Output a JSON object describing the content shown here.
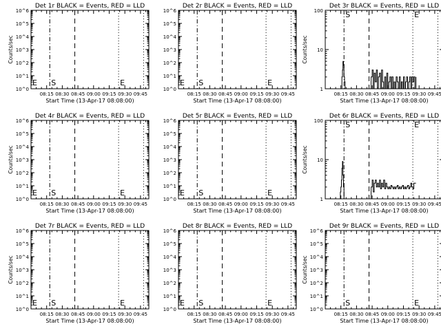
{
  "chart_data": [
    {
      "type": "line",
      "title": "Det 1r BLACK = Events, RED = LLD",
      "xlabel": "Start Time (13-Apr-17 08:08:00)",
      "ylabel": "Counts/sec",
      "yscale": "log",
      "ylim": [
        1,
        1000000
      ],
      "y_tick_labels": [
        "10^0",
        "10^1",
        "10^2",
        "10^3",
        "10^4",
        "10^5",
        "10^6"
      ],
      "x_tick_labels": [
        "08:15",
        "08:30",
        "08:45",
        "09:00",
        "09:15",
        "09:30",
        "09:45"
      ],
      "x_ticks_min": [
        15,
        30,
        45,
        60,
        75,
        90,
        105
      ],
      "xlim_min": [
        0,
        113
      ],
      "markers": [
        {
          "label": "E",
          "at_min": 0,
          "style": "dotted"
        },
        {
          "label": "S",
          "at_min": 18,
          "style": "dashdot"
        },
        {
          "label": "",
          "at_min": 42,
          "style": "dashed"
        },
        {
          "label": "E",
          "at_min": 84,
          "style": "dotted"
        },
        {
          "label": "",
          "at_min": 108,
          "style": "dotted"
        }
      ],
      "series": []
    },
    {
      "type": "line",
      "title": "Det 2r BLACK = Events, RED = LLD",
      "xlabel": "Start Time (13-Apr-17 08:08:00)",
      "ylabel": "",
      "yscale": "log",
      "ylim": [
        1,
        1000000
      ],
      "y_tick_labels": [
        "10^0",
        "10^1",
        "10^2",
        "10^3",
        "10^4",
        "10^5",
        "10^6"
      ],
      "x_tick_labels": [
        "08:15",
        "08:30",
        "08:45",
        "09:00",
        "09:15",
        "09:30",
        "09:45"
      ],
      "x_ticks_min": [
        15,
        30,
        45,
        60,
        75,
        90,
        105
      ],
      "xlim_min": [
        0,
        113
      ],
      "markers": [
        {
          "label": "E",
          "at_min": 0,
          "style": "dotted"
        },
        {
          "label": "S",
          "at_min": 18,
          "style": "dashdot"
        },
        {
          "label": "",
          "at_min": 42,
          "style": "dashed"
        },
        {
          "label": "E",
          "at_min": 84,
          "style": "dotted"
        },
        {
          "label": "",
          "at_min": 108,
          "style": "dotted"
        }
      ],
      "series": []
    },
    {
      "type": "line",
      "title": "Det 3r BLACK = Events, RED = LLD",
      "xlabel": "Start Time (13-Apr-17 08:08:00)",
      "ylabel": "Counts/sec",
      "yscale": "log",
      "ylim": [
        1,
        100
      ],
      "y_tick_labels": [
        "1",
        "10",
        "100"
      ],
      "x_tick_labels": [
        "08:15",
        "08:30",
        "08:45",
        "09:00",
        "09:15",
        "09:30",
        "09:45"
      ],
      "x_ticks_min": [
        15,
        30,
        45,
        60,
        75,
        90,
        105
      ],
      "xlim_min": [
        0,
        113
      ],
      "markers": [
        {
          "label": "",
          "at_min": 0,
          "style": "dotted"
        },
        {
          "label": "S",
          "at_min": 18,
          "style": "dashdot"
        },
        {
          "label": "",
          "at_min": 42,
          "style": "dashed"
        },
        {
          "label": "E",
          "at_min": 84,
          "style": "dotted"
        },
        {
          "label": "",
          "at_min": 108,
          "style": "dotted"
        }
      ],
      "series": [
        {
          "color": "#000000",
          "x": [
            15.5,
            16,
            16.5,
            17,
            17.5,
            18,
            18.5,
            19,
            43,
            44,
            45,
            46,
            47,
            48,
            49,
            50,
            51,
            52,
            53,
            54,
            55,
            56,
            57,
            58,
            59,
            60,
            61,
            62,
            63,
            64,
            65,
            66,
            67,
            68,
            69,
            70,
            71,
            72,
            73,
            74,
            75,
            76,
            77,
            78,
            79,
            80,
            81,
            82,
            83,
            84,
            85,
            86,
            87
          ],
          "y": [
            1,
            2,
            3,
            5,
            4,
            2,
            1.5,
            1,
            1,
            2,
            3,
            1,
            2.5,
            1.5,
            3,
            1,
            2,
            2.5,
            1,
            3,
            1.5,
            1,
            2,
            1,
            2.5,
            1,
            1.5,
            2,
            1,
            2,
            1,
            1.5,
            1,
            2,
            1.5,
            1,
            2,
            1,
            1.5,
            1,
            2,
            1,
            1.5,
            2,
            1,
            1.5,
            2,
            1,
            2,
            1.5,
            2,
            1,
            2
          ]
        },
        {
          "color": "#ff0000",
          "x": [
            0,
            4
          ],
          "y": [
            100,
            100
          ]
        }
      ]
    },
    {
      "type": "line",
      "title": "Det 4r BLACK = Events, RED = LLD",
      "xlabel": "Start Time (13-Apr-17 08:08:00)",
      "ylabel": "Counts/sec",
      "yscale": "log",
      "ylim": [
        1,
        1000000
      ],
      "y_tick_labels": [
        "10^0",
        "10^1",
        "10^2",
        "10^3",
        "10^4",
        "10^5",
        "10^6"
      ],
      "x_tick_labels": [
        "08:15",
        "08:30",
        "08:45",
        "09:00",
        "09:15",
        "09:30",
        "09:45"
      ],
      "x_ticks_min": [
        15,
        30,
        45,
        60,
        75,
        90,
        105
      ],
      "xlim_min": [
        0,
        113
      ],
      "markers": [
        {
          "label": "E",
          "at_min": 0,
          "style": "dotted"
        },
        {
          "label": "S",
          "at_min": 18,
          "style": "dashdot"
        },
        {
          "label": "",
          "at_min": 42,
          "style": "dashed"
        },
        {
          "label": "E",
          "at_min": 84,
          "style": "dotted"
        },
        {
          "label": "",
          "at_min": 108,
          "style": "dotted"
        }
      ],
      "series": []
    },
    {
      "type": "line",
      "title": "Det 5r BLACK = Events, RED = LLD",
      "xlabel": "Start Time (13-Apr-17 08:08:00)",
      "ylabel": "",
      "yscale": "log",
      "ylim": [
        1,
        1000000
      ],
      "y_tick_labels": [
        "10^0",
        "10^1",
        "10^2",
        "10^3",
        "10^4",
        "10^5",
        "10^6"
      ],
      "x_tick_labels": [
        "08:15",
        "08:30",
        "08:45",
        "09:00",
        "09:15",
        "09:30",
        "09:45"
      ],
      "x_ticks_min": [
        15,
        30,
        45,
        60,
        75,
        90,
        105
      ],
      "xlim_min": [
        0,
        113
      ],
      "markers": [
        {
          "label": "E",
          "at_min": 0,
          "style": "dotted"
        },
        {
          "label": "S",
          "at_min": 18,
          "style": "dashdot"
        },
        {
          "label": "",
          "at_min": 42,
          "style": "dashed"
        },
        {
          "label": "E",
          "at_min": 84,
          "style": "dotted"
        },
        {
          "label": "",
          "at_min": 108,
          "style": "dotted"
        }
      ],
      "series": []
    },
    {
      "type": "line",
      "title": "Det 6r BLACK = Events, RED = LLD",
      "xlabel": "Start Time (13-Apr-17 08:08:00)",
      "ylabel": "Counts/sec",
      "yscale": "log",
      "ylim": [
        1,
        100
      ],
      "y_tick_labels": [
        "1",
        "10",
        "100"
      ],
      "x_tick_labels": [
        "08:15",
        "08:30",
        "08:45",
        "09:00",
        "09:15",
        "09:30",
        "09:45"
      ],
      "x_ticks_min": [
        15,
        30,
        45,
        60,
        75,
        90,
        105
      ],
      "xlim_min": [
        0,
        113
      ],
      "markers": [
        {
          "label": "",
          "at_min": 0,
          "style": "dotted"
        },
        {
          "label": "S",
          "at_min": 18,
          "style": "dashdot"
        },
        {
          "label": "",
          "at_min": 42,
          "style": "dashed"
        },
        {
          "label": "E",
          "at_min": 84,
          "style": "dotted"
        },
        {
          "label": "",
          "at_min": 108,
          "style": "dotted"
        }
      ],
      "series": [
        {
          "color": "#000000",
          "x": [
            14,
            14.5,
            15,
            15.5,
            16,
            16.5,
            17,
            17.5,
            18,
            43,
            44,
            45,
            46,
            47,
            48,
            49,
            50,
            51,
            52,
            53,
            54,
            55,
            56,
            57,
            58,
            59,
            60,
            61,
            62,
            63,
            64,
            65,
            66,
            67,
            68,
            69,
            70,
            71,
            72,
            73,
            74,
            75,
            76,
            77,
            78,
            79,
            80,
            81,
            82,
            83,
            84,
            85,
            86,
            87
          ],
          "y": [
            1,
            1.5,
            2,
            3,
            6,
            9,
            4,
            2,
            1,
            1,
            2,
            3,
            1.5,
            2.5,
            3,
            2,
            2.5,
            2,
            3,
            1.8,
            2.5,
            2,
            3,
            1.8,
            2.5,
            2,
            1.8,
            2,
            1.8,
            2.2,
            2,
            1.8,
            2,
            1.8,
            2,
            2.2,
            1.8,
            2,
            1.8,
            2,
            2.2,
            1.8,
            2,
            1.8,
            2,
            2.2,
            1.8,
            2,
            2.5,
            2,
            1.8,
            2.5,
            2.5,
            2.5
          ]
        }
      ]
    },
    {
      "type": "line",
      "title": "Det 7r BLACK = Events, RED = LLD",
      "xlabel": "Start Time (13-Apr-17 08:08:00)",
      "ylabel": "Counts/sec",
      "yscale": "log",
      "ylim": [
        1,
        1000000
      ],
      "y_tick_labels": [
        "10^0",
        "10^1",
        "10^2",
        "10^3",
        "10^4",
        "10^5",
        "10^6"
      ],
      "x_tick_labels": [
        "08:15",
        "08:30",
        "08:45",
        "09:00",
        "09:15",
        "09:30",
        "09:45"
      ],
      "x_ticks_min": [
        15,
        30,
        45,
        60,
        75,
        90,
        105
      ],
      "xlim_min": [
        0,
        113
      ],
      "markers": [
        {
          "label": "E",
          "at_min": 0,
          "style": "dotted"
        },
        {
          "label": "S",
          "at_min": 18,
          "style": "dashdot"
        },
        {
          "label": "",
          "at_min": 42,
          "style": "dashed"
        },
        {
          "label": "E",
          "at_min": 84,
          "style": "dotted"
        },
        {
          "label": "",
          "at_min": 108,
          "style": "dotted"
        }
      ],
      "series": []
    },
    {
      "type": "line",
      "title": "Det 8r BLACK = Events, RED = LLD",
      "xlabel": "Start Time (13-Apr-17 08:08:00)",
      "ylabel": "",
      "yscale": "log",
      "ylim": [
        1,
        1000000
      ],
      "y_tick_labels": [
        "10^0",
        "10^1",
        "10^2",
        "10^3",
        "10^4",
        "10^5",
        "10^6"
      ],
      "x_tick_labels": [
        "08:15",
        "08:30",
        "08:45",
        "09:00",
        "09:15",
        "09:30",
        "09:45"
      ],
      "x_ticks_min": [
        15,
        30,
        45,
        60,
        75,
        90,
        105
      ],
      "xlim_min": [
        0,
        113
      ],
      "markers": [
        {
          "label": "E",
          "at_min": 0,
          "style": "dotted"
        },
        {
          "label": "S",
          "at_min": 18,
          "style": "dashdot"
        },
        {
          "label": "",
          "at_min": 42,
          "style": "dashed"
        },
        {
          "label": "E",
          "at_min": 84,
          "style": "dotted"
        },
        {
          "label": "",
          "at_min": 108,
          "style": "dotted"
        }
      ],
      "series": []
    },
    {
      "type": "line",
      "title": "Det 9r BLACK = Events, RED = LLD",
      "xlabel": "Start Time (13-Apr-17 08:08:00)",
      "ylabel": "Counts/sec",
      "yscale": "log",
      "ylim": [
        1,
        1000000
      ],
      "y_tick_labels": [
        "10^0",
        "10^1",
        "10^2",
        "10^3",
        "10^4",
        "10^5",
        "10^6"
      ],
      "x_tick_labels": [
        "08:15",
        "08:30",
        "08:45",
        "09:00",
        "09:15",
        "09:30",
        "09:45"
      ],
      "x_ticks_min": [
        15,
        30,
        45,
        60,
        75,
        90,
        105
      ],
      "xlim_min": [
        0,
        113
      ],
      "markers": [
        {
          "label": "",
          "at_min": 0,
          "style": "dotted"
        },
        {
          "label": "S",
          "at_min": 18,
          "style": "dashdot"
        },
        {
          "label": "",
          "at_min": 42,
          "style": "dashed"
        },
        {
          "label": "E",
          "at_min": 84,
          "style": "dotted"
        },
        {
          "label": "",
          "at_min": 108,
          "style": "dotted"
        }
      ],
      "series": []
    }
  ]
}
